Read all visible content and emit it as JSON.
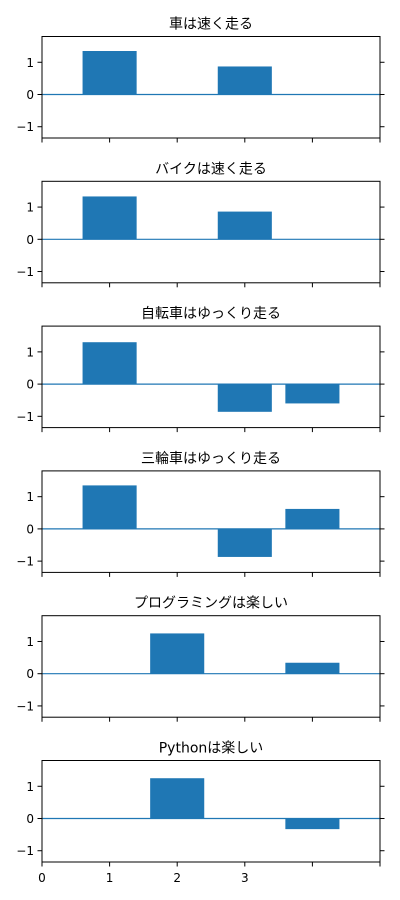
{
  "chart_data": [
    {
      "type": "bar",
      "title": "車は速く走る",
      "xlabel": "",
      "ylabel": "",
      "x": [
        1,
        3
      ],
      "values": [
        1.35,
        0.87
      ],
      "xlim": [
        0,
        5
      ],
      "ylim": [
        -1.35,
        1.8
      ],
      "yticks": [
        1,
        0,
        -1
      ],
      "yticklabels": [
        "1",
        "0",
        "−1"
      ],
      "xticks": [
        0,
        1,
        2,
        3,
        4,
        5
      ],
      "xticklabels": [],
      "grid": false,
      "zero_line": true,
      "bar_color": "#1f77b4"
    },
    {
      "type": "bar",
      "title": "バイクは速く走る",
      "xlabel": "",
      "ylabel": "",
      "x": [
        1,
        3
      ],
      "values": [
        1.33,
        0.86
      ],
      "xlim": [
        0,
        5
      ],
      "ylim": [
        -1.35,
        1.8
      ],
      "yticks": [
        1,
        0,
        -1
      ],
      "yticklabels": [
        "1",
        "0",
        "−1"
      ],
      "xticks": [
        0,
        1,
        2,
        3,
        4,
        5
      ],
      "xticklabels": [],
      "grid": false,
      "zero_line": true,
      "bar_color": "#1f77b4"
    },
    {
      "type": "bar",
      "title": "自転車はゆっくり走る",
      "xlabel": "",
      "ylabel": "",
      "x": [
        1,
        3,
        4
      ],
      "values": [
        1.3,
        -0.86,
        -0.6
      ],
      "xlim": [
        0,
        5
      ],
      "ylim": [
        -1.35,
        1.8
      ],
      "yticks": [
        1,
        0,
        -1
      ],
      "yticklabels": [
        "1",
        "0",
        "−1"
      ],
      "xticks": [
        0,
        1,
        2,
        3,
        4,
        5
      ],
      "xticklabels": [],
      "grid": false,
      "zero_line": true,
      "bar_color": "#1f77b4"
    },
    {
      "type": "bar",
      "title": "三輪車はゆっくり走る",
      "xlabel": "",
      "ylabel": "",
      "x": [
        1,
        3,
        4
      ],
      "values": [
        1.35,
        -0.87,
        0.62
      ],
      "xlim": [
        0,
        5
      ],
      "ylim": [
        -1.35,
        1.8
      ],
      "yticks": [
        1,
        0,
        -1
      ],
      "yticklabels": [
        "1",
        "0",
        "−1"
      ],
      "xticks": [
        0,
        1,
        2,
        3,
        4,
        5
      ],
      "xticklabels": [],
      "grid": false,
      "zero_line": true,
      "bar_color": "#1f77b4"
    },
    {
      "type": "bar",
      "title": "プログラミングは楽しい",
      "xlabel": "",
      "ylabel": "",
      "x": [
        2,
        4
      ],
      "values": [
        1.25,
        0.34
      ],
      "xlim": [
        0,
        5
      ],
      "ylim": [
        -1.35,
        1.8
      ],
      "yticks": [
        1,
        0,
        -1
      ],
      "yticklabels": [
        "1",
        "0",
        "−1"
      ],
      "xticks": [
        0,
        1,
        2,
        3,
        4,
        5
      ],
      "xticklabels": [],
      "grid": false,
      "zero_line": true,
      "bar_color": "#1f77b4"
    },
    {
      "type": "bar",
      "title": "Pythonは楽しい",
      "xlabel": "",
      "ylabel": "",
      "x": [
        2,
        4
      ],
      "values": [
        1.25,
        -0.33
      ],
      "xlim": [
        0,
        5
      ],
      "ylim": [
        -1.35,
        1.8
      ],
      "yticks": [
        1,
        0,
        -1
      ],
      "yticklabels": [
        "1",
        "0",
        "−1"
      ],
      "xticks": [
        0,
        1,
        2,
        3,
        4,
        5
      ],
      "xticklabels": [
        "0",
        "1",
        "2",
        "3",
        "",
        ""
      ],
      "grid": false,
      "zero_line": true,
      "bar_color": "#1f77b4"
    }
  ]
}
